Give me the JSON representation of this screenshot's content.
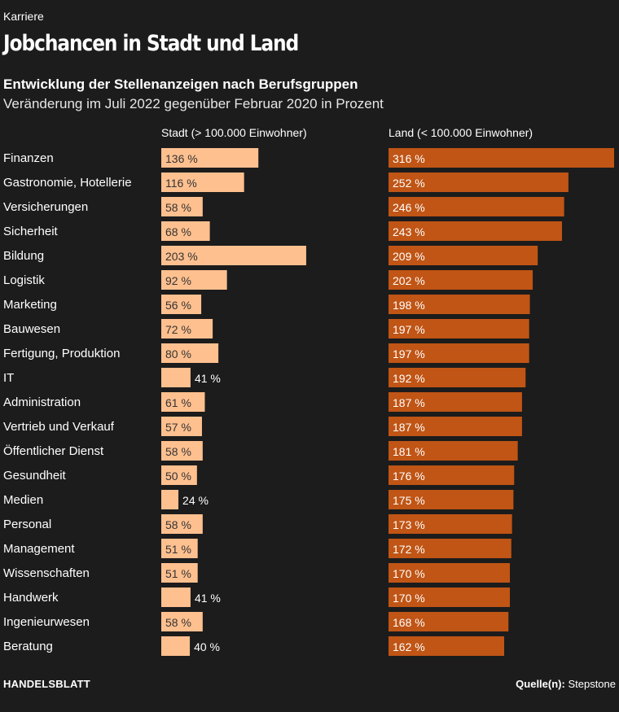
{
  "kicker": "Karriere",
  "title": "Jobchancen in Stadt und Land",
  "subtitle": "Entwicklung der Stellenanzeigen nach Berufsgruppen",
  "description": "Veränderung im Juli 2022 gegenüber Februar 2020 in Prozent",
  "footer": {
    "brand": "HANDELSBLATT",
    "source_label": "Quelle(n):",
    "source_value": "Stepstone"
  },
  "colors": {
    "stadt": "#ffc08f",
    "land": "#c05515",
    "background": "#1c1c1c"
  },
  "chart_data": {
    "type": "bar",
    "orientation": "horizontal",
    "unit": "%",
    "categories": [
      "Finanzen",
      "Gastronomie, Hotellerie",
      "Versicherungen",
      "Sicherheit",
      "Bildung",
      "Logistik",
      "Marketing",
      "Bauwesen",
      "Fertigung, Produktion",
      "IT",
      "Administration",
      "Vertrieb und Verkauf",
      "Öffentlicher Dienst",
      "Gesundheit",
      "Medien",
      "Personal",
      "Management",
      "Wissenschaften",
      "Handwerk",
      "Ingenieurwesen",
      "Beratung"
    ],
    "series": [
      {
        "name": "Stadt (> 100.000 Einwohner)",
        "values": [
          136,
          116,
          58,
          68,
          203,
          92,
          56,
          72,
          80,
          41,
          61,
          57,
          58,
          50,
          24,
          58,
          51,
          51,
          41,
          58,
          40
        ]
      },
      {
        "name": "Land (< 100.000 Einwohner)",
        "values": [
          316,
          252,
          246,
          243,
          209,
          202,
          198,
          197,
          197,
          192,
          187,
          187,
          181,
          176,
          175,
          173,
          172,
          170,
          170,
          168,
          162
        ]
      }
    ],
    "xlim": [
      0,
      316
    ],
    "grid": false,
    "legend": "column headers above bars"
  }
}
